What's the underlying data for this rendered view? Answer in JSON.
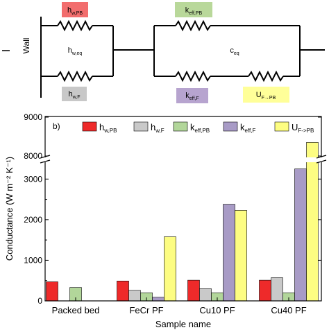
{
  "circuit": {
    "wall_label": "Wall",
    "labels": {
      "h_w_pb": {
        "main": "h",
        "sub": "w,PB",
        "color": "#f26d6d"
      },
      "h_w_eq": {
        "main": "h",
        "sub": "w,eq"
      },
      "h_w_f": {
        "main": "h",
        "sub": "w,F",
        "color": "#c8c8c8"
      },
      "k_eff_pb": {
        "main": "k",
        "sub": "eff,PB",
        "color": "#b9d89a"
      },
      "c_eq": {
        "main": "c",
        "sub": "eq"
      },
      "k_eff_f": {
        "main": "k",
        "sub": "eff,F",
        "color": "#b7a4cf"
      },
      "u_f_pb": {
        "main": "U",
        "sub": "F→PB",
        "color": "#ffff99"
      }
    }
  },
  "chart_data": {
    "type": "bar",
    "panel_label": "b)",
    "xlabel": "Sample name",
    "ylabel": "Conductance (W m⁻² K⁻¹)",
    "categories": [
      "Packed bed",
      "FeCr PF",
      "Cu10 PF",
      "Cu40 PF"
    ],
    "series": [
      {
        "name": "h_w,PB",
        "main": "h",
        "sub": "w,PB",
        "color": "#ee2a2a",
        "values": [
          470,
          490,
          510,
          510
        ]
      },
      {
        "name": "h_w,F",
        "main": "h",
        "sub": "w,F",
        "color": "#c9c9c9",
        "values": [
          null,
          260,
          300,
          570
        ]
      },
      {
        "name": "k_eff,PB",
        "main": "k",
        "sub": "eff,PB",
        "color": "#b2d69a",
        "values": [
          330,
          200,
          200,
          200
        ]
      },
      {
        "name": "k_eff,F",
        "main": "k",
        "sub": "eff,F",
        "color": "#a89bc6",
        "values": [
          null,
          90,
          2380,
          3250
        ]
      },
      {
        "name": "U_F->PB",
        "main": "U",
        "sub": "F->PB",
        "color": "#fdfd82",
        "values": [
          null,
          1580,
          2230,
          8350
        ]
      }
    ],
    "y_axis": {
      "break": true,
      "lower_range": [
        0,
        3500
      ],
      "upper_range": [
        7800,
        9000
      ],
      "ticks": [
        "0",
        "1000",
        "2000",
        "3000",
        "8000",
        "9000"
      ]
    },
    "legend_position": "top"
  }
}
